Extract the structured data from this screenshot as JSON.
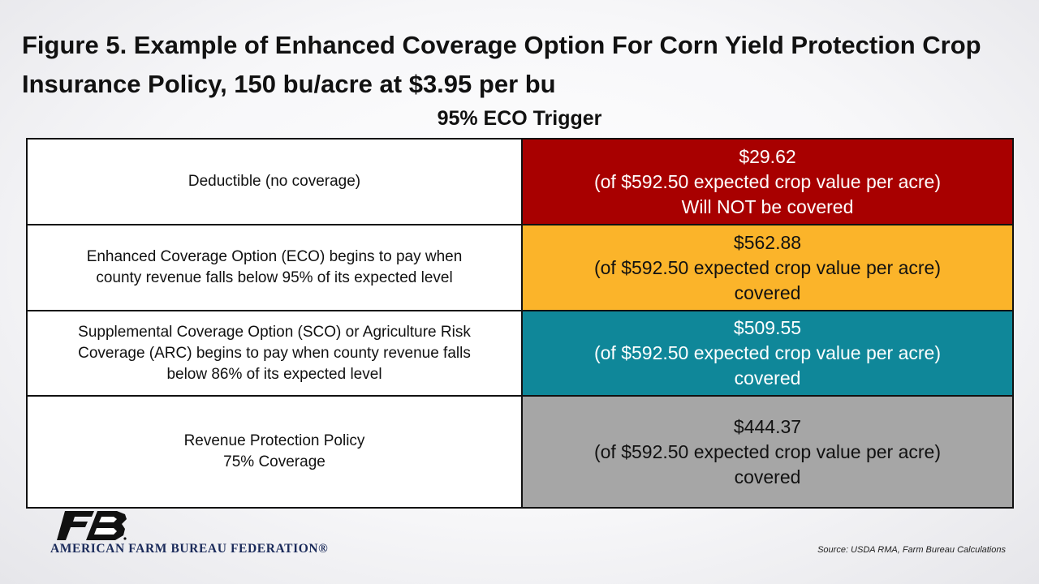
{
  "title": "Figure 5. Example of Enhanced Coverage Option For Corn Yield Protection Crop Insurance Policy, 150 bu/acre at $3.95 per bu",
  "subtitle": "95% ECO Trigger",
  "rows": [
    {
      "label_lines": [
        "Deductible (no coverage)"
      ],
      "amount": "$29.62",
      "note": "(of $592.50 expected crop value per acre)",
      "status": "Will NOT be covered",
      "color": "#a80000",
      "text_color": "#ffffff"
    },
    {
      "label_lines": [
        "Enhanced Coverage Option (ECO) begins to pay when",
        "county revenue falls below 95% of its expected level"
      ],
      "amount": "$562.88",
      "note": "(of $592.50 expected crop value per acre)",
      "status": "covered",
      "color": "#fbb42a",
      "text_color": "#111111"
    },
    {
      "label_lines": [
        "Supplemental Coverage Option (SCO) or Agriculture Risk",
        "Coverage (ARC) begins to pay when county revenue falls",
        "below 86% of its expected level"
      ],
      "amount": "$509.55",
      "note": "(of $592.50 expected crop value per acre)",
      "status": "covered",
      "color": "#0f8799",
      "text_color": "#ffffff"
    },
    {
      "label_lines": [
        "Revenue Protection Policy",
        "75% Coverage"
      ],
      "amount": "$444.37",
      "note": "(of $592.50 expected crop value per acre)",
      "status": "covered",
      "color": "#a6a6a6",
      "text_color": "#111111"
    }
  ],
  "logo": {
    "text": "AMERICAN FARM BUREAU FEDERATION®",
    "icon": "farm-bureau-fb-logo-icon",
    "color": "#1a2a5a"
  },
  "source": "Source: USDA RMA, Farm Bureau Calculations"
}
